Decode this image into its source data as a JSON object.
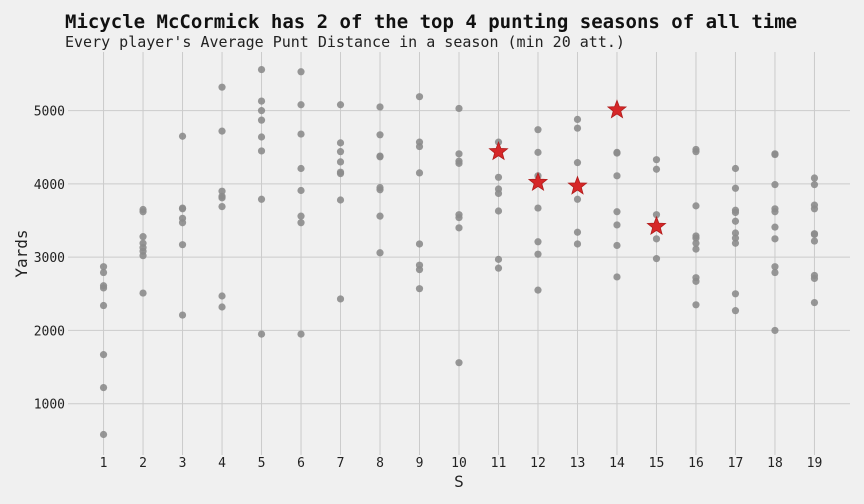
{
  "chart_data": {
    "type": "scatter",
    "title": "Micycle McCormick has 2 of the top 4 punting seasons of all time",
    "subtitle": "Every player's Average Punt Distance in a season (min 20 att.)",
    "xlabel": "S",
    "ylabel": "Yards",
    "xlim": [
      0.1,
      19.9
    ],
    "ylim": [
      300,
      5800
    ],
    "x_ticks": [
      1,
      2,
      3,
      4,
      5,
      6,
      7,
      8,
      9,
      10,
      11,
      12,
      13,
      14,
      15,
      16,
      17,
      18,
      19
    ],
    "y_ticks": [
      1000,
      2000,
      3000,
      4000,
      5000
    ],
    "grid": true,
    "colors": {
      "others": "#8c8c8c",
      "highlight": "#d62728",
      "grid": "#cbcbcb",
      "background": "#f0f0f0"
    },
    "series": [
      {
        "marker": "circle",
        "points": [
          [
            1,
            2870
          ],
          [
            1,
            2790
          ],
          [
            1,
            2610
          ],
          [
            1,
            2580
          ],
          [
            1,
            2340
          ],
          [
            1,
            1670
          ],
          [
            1,
            1220
          ],
          [
            1,
            580
          ],
          [
            2,
            3650
          ],
          [
            2,
            3620
          ],
          [
            2,
            3280
          ],
          [
            2,
            3190
          ],
          [
            2,
            3130
          ],
          [
            2,
            3080
          ],
          [
            2,
            3020
          ],
          [
            2,
            2510
          ],
          [
            3,
            4650
          ],
          [
            3,
            3670
          ],
          [
            3,
            3660
          ],
          [
            3,
            3530
          ],
          [
            3,
            3470
          ],
          [
            3,
            3170
          ],
          [
            3,
            2210
          ],
          [
            4,
            5320
          ],
          [
            4,
            4720
          ],
          [
            4,
            3900
          ],
          [
            4,
            3830
          ],
          [
            4,
            3810
          ],
          [
            4,
            3690
          ],
          [
            4,
            2470
          ],
          [
            4,
            2320
          ],
          [
            5,
            5560
          ],
          [
            5,
            5130
          ],
          [
            5,
            5000
          ],
          [
            5,
            4870
          ],
          [
            5,
            4640
          ],
          [
            5,
            4450
          ],
          [
            5,
            3790
          ],
          [
            5,
            1950
          ],
          [
            6,
            5530
          ],
          [
            6,
            5080
          ],
          [
            6,
            4680
          ],
          [
            6,
            4210
          ],
          [
            6,
            3910
          ],
          [
            6,
            3560
          ],
          [
            6,
            3470
          ],
          [
            6,
            1950
          ],
          [
            7,
            5080
          ],
          [
            7,
            4560
          ],
          [
            7,
            4440
          ],
          [
            7,
            4300
          ],
          [
            7,
            4160
          ],
          [
            7,
            4140
          ],
          [
            7,
            3780
          ],
          [
            7,
            2430
          ],
          [
            8,
            5050
          ],
          [
            8,
            4670
          ],
          [
            8,
            4380
          ],
          [
            8,
            4370
          ],
          [
            8,
            3950
          ],
          [
            8,
            3920
          ],
          [
            8,
            3560
          ],
          [
            8,
            3060
          ],
          [
            9,
            5190
          ],
          [
            9,
            4570
          ],
          [
            9,
            4510
          ],
          [
            9,
            4150
          ],
          [
            9,
            3180
          ],
          [
            9,
            2890
          ],
          [
            9,
            2830
          ],
          [
            9,
            2570
          ],
          [
            10,
            5030
          ],
          [
            10,
            4410
          ],
          [
            10,
            4310
          ],
          [
            10,
            4280
          ],
          [
            10,
            3580
          ],
          [
            10,
            3540
          ],
          [
            10,
            3400
          ],
          [
            10,
            1560
          ],
          [
            11,
            4570
          ],
          [
            11,
            4090
          ],
          [
            11,
            3930
          ],
          [
            11,
            3870
          ],
          [
            11,
            3630
          ],
          [
            11,
            2970
          ],
          [
            11,
            2850
          ],
          [
            12,
            4740
          ],
          [
            12,
            4430
          ],
          [
            12,
            4110
          ],
          [
            12,
            3670
          ],
          [
            12,
            3210
          ],
          [
            12,
            3040
          ],
          [
            12,
            2550
          ],
          [
            13,
            4880
          ],
          [
            13,
            4760
          ],
          [
            13,
            4290
          ],
          [
            13,
            3790
          ],
          [
            13,
            3340
          ],
          [
            13,
            3180
          ],
          [
            14,
            4430
          ],
          [
            14,
            4420
          ],
          [
            14,
            4110
          ],
          [
            14,
            3620
          ],
          [
            14,
            3440
          ],
          [
            14,
            3160
          ],
          [
            14,
            2730
          ],
          [
            15,
            4330
          ],
          [
            15,
            4200
          ],
          [
            15,
            3580
          ],
          [
            15,
            3250
          ],
          [
            15,
            2980
          ],
          [
            16,
            4470
          ],
          [
            16,
            4440
          ],
          [
            16,
            3700
          ],
          [
            16,
            3290
          ],
          [
            16,
            3260
          ],
          [
            16,
            3190
          ],
          [
            16,
            3110
          ],
          [
            16,
            2720
          ],
          [
            16,
            2670
          ],
          [
            16,
            2350
          ],
          [
            17,
            4210
          ],
          [
            17,
            3940
          ],
          [
            17,
            3640
          ],
          [
            17,
            3610
          ],
          [
            17,
            3490
          ],
          [
            17,
            3330
          ],
          [
            17,
            3260
          ],
          [
            17,
            3190
          ],
          [
            17,
            2500
          ],
          [
            17,
            2270
          ],
          [
            18,
            4410
          ],
          [
            18,
            4400
          ],
          [
            18,
            3990
          ],
          [
            18,
            3660
          ],
          [
            18,
            3620
          ],
          [
            18,
            3410
          ],
          [
            18,
            3250
          ],
          [
            18,
            2870
          ],
          [
            18,
            2790
          ],
          [
            18,
            2000
          ],
          [
            19,
            4080
          ],
          [
            19,
            3990
          ],
          [
            19,
            3710
          ],
          [
            19,
            3660
          ],
          [
            19,
            3320
          ],
          [
            19,
            3310
          ],
          [
            19,
            3220
          ],
          [
            19,
            2750
          ],
          [
            19,
            2710
          ],
          [
            19,
            2380
          ]
        ]
      },
      {
        "marker": "star",
        "points": [
          [
            11,
            4440
          ],
          [
            12,
            4020
          ],
          [
            13,
            3970
          ],
          [
            14,
            5010
          ],
          [
            15,
            3420
          ]
        ]
      }
    ]
  }
}
